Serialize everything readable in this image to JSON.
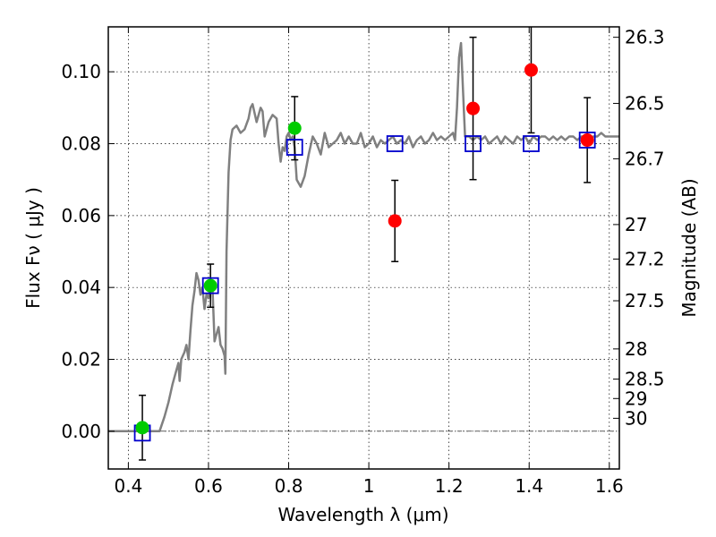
{
  "chart_data": {
    "type": "scatter",
    "xlabel": "Wavelength  λ (μm)",
    "ylabel": "Flux  Fν  ( μJy )",
    "y2label": "Magnitude (AB)",
    "xlim": [
      0.35,
      1.625
    ],
    "ylim": [
      -0.0105,
      0.1125
    ],
    "xticks": [
      0.4,
      0.6,
      0.8,
      1.0,
      1.2,
      1.4,
      1.6
    ],
    "xtick_labels": [
      "0.4",
      "0.6",
      "0.8",
      "1",
      "1.2",
      "1.4",
      "1.6"
    ],
    "yticks": [
      0.0,
      0.02,
      0.04,
      0.06,
      0.08,
      0.1
    ],
    "ytick_labels": [
      "0.00",
      "0.02",
      "0.04",
      "0.06",
      "0.08",
      "0.10"
    ],
    "mag_ticks": [
      {
        "label": "26.3",
        "flux": 0.1096
      },
      {
        "label": "26.5",
        "flux": 0.0912
      },
      {
        "label": "26.7",
        "flux": 0.0758
      },
      {
        "label": "27",
        "flux": 0.0575
      },
      {
        "label": "27.2",
        "flux": 0.0479
      },
      {
        "label": "27.5",
        "flux": 0.0363
      },
      {
        "label": "28",
        "flux": 0.0229
      },
      {
        "label": "28.5",
        "flux": 0.0145
      },
      {
        "label": "29",
        "flux": 0.0091
      },
      {
        "label": "30",
        "flux": 0.0036
      }
    ],
    "grid": true,
    "series": [
      {
        "type": "line",
        "color": "#808080",
        "points": [
          [
            0.35,
            0.0
          ],
          [
            0.478,
            0.0
          ],
          [
            0.49,
            0.004
          ],
          [
            0.5,
            0.008
          ],
          [
            0.51,
            0.013
          ],
          [
            0.52,
            0.017
          ],
          [
            0.525,
            0.019
          ],
          [
            0.528,
            0.014
          ],
          [
            0.532,
            0.02
          ],
          [
            0.54,
            0.022
          ],
          [
            0.545,
            0.024
          ],
          [
            0.55,
            0.02
          ],
          [
            0.555,
            0.028
          ],
          [
            0.56,
            0.035
          ],
          [
            0.565,
            0.039
          ],
          [
            0.57,
            0.044
          ],
          [
            0.575,
            0.042
          ],
          [
            0.58,
            0.038
          ],
          [
            0.585,
            0.04
          ],
          [
            0.59,
            0.034
          ],
          [
            0.595,
            0.038
          ],
          [
            0.6,
            0.037
          ],
          [
            0.605,
            0.041
          ],
          [
            0.61,
            0.04
          ],
          [
            0.615,
            0.025
          ],
          [
            0.62,
            0.027
          ],
          [
            0.625,
            0.029
          ],
          [
            0.63,
            0.024
          ],
          [
            0.635,
            0.023
          ],
          [
            0.64,
            0.021
          ],
          [
            0.642,
            0.016
          ],
          [
            0.645,
            0.05
          ],
          [
            0.65,
            0.072
          ],
          [
            0.655,
            0.081
          ],
          [
            0.66,
            0.084
          ],
          [
            0.67,
            0.085
          ],
          [
            0.68,
            0.083
          ],
          [
            0.69,
            0.084
          ],
          [
            0.7,
            0.087
          ],
          [
            0.705,
            0.09
          ],
          [
            0.71,
            0.091
          ],
          [
            0.72,
            0.086
          ],
          [
            0.73,
            0.09
          ],
          [
            0.735,
            0.089
          ],
          [
            0.74,
            0.082
          ],
          [
            0.75,
            0.086
          ],
          [
            0.76,
            0.088
          ],
          [
            0.77,
            0.087
          ],
          [
            0.775,
            0.08
          ],
          [
            0.78,
            0.075
          ],
          [
            0.785,
            0.079
          ],
          [
            0.79,
            0.078
          ],
          [
            0.795,
            0.082
          ],
          [
            0.8,
            0.083
          ],
          [
            0.805,
            0.081
          ],
          [
            0.81,
            0.082
          ],
          [
            0.815,
            0.079
          ],
          [
            0.82,
            0.07
          ],
          [
            0.83,
            0.068
          ],
          [
            0.84,
            0.071
          ],
          [
            0.85,
            0.077
          ],
          [
            0.86,
            0.082
          ],
          [
            0.87,
            0.08
          ],
          [
            0.88,
            0.077
          ],
          [
            0.89,
            0.083
          ],
          [
            0.9,
            0.079
          ],
          [
            0.91,
            0.08
          ],
          [
            0.92,
            0.081
          ],
          [
            0.93,
            0.083
          ],
          [
            0.94,
            0.08
          ],
          [
            0.95,
            0.082
          ],
          [
            0.96,
            0.08
          ],
          [
            0.97,
            0.08
          ],
          [
            0.98,
            0.083
          ],
          [
            0.99,
            0.079
          ],
          [
            1.0,
            0.08
          ],
          [
            1.01,
            0.082
          ],
          [
            1.02,
            0.079
          ],
          [
            1.03,
            0.081
          ],
          [
            1.04,
            0.08
          ],
          [
            1.05,
            0.081
          ],
          [
            1.06,
            0.082
          ],
          [
            1.07,
            0.08
          ],
          [
            1.08,
            0.081
          ],
          [
            1.09,
            0.08
          ],
          [
            1.1,
            0.082
          ],
          [
            1.11,
            0.079
          ],
          [
            1.12,
            0.081
          ],
          [
            1.13,
            0.082
          ],
          [
            1.14,
            0.08
          ],
          [
            1.15,
            0.081
          ],
          [
            1.16,
            0.083
          ],
          [
            1.17,
            0.081
          ],
          [
            1.18,
            0.082
          ],
          [
            1.19,
            0.081
          ],
          [
            1.2,
            0.082
          ],
          [
            1.21,
            0.083
          ],
          [
            1.215,
            0.081
          ],
          [
            1.22,
            0.09
          ],
          [
            1.225,
            0.104
          ],
          [
            1.23,
            0.108
          ],
          [
            1.235,
            0.095
          ],
          [
            1.24,
            0.082
          ],
          [
            1.25,
            0.082
          ],
          [
            1.26,
            0.081
          ],
          [
            1.27,
            0.082
          ],
          [
            1.28,
            0.081
          ],
          [
            1.29,
            0.082
          ],
          [
            1.3,
            0.08
          ],
          [
            1.31,
            0.081
          ],
          [
            1.32,
            0.082
          ],
          [
            1.33,
            0.08
          ],
          [
            1.34,
            0.082
          ],
          [
            1.35,
            0.081
          ],
          [
            1.36,
            0.08
          ],
          [
            1.37,
            0.082
          ],
          [
            1.38,
            0.081
          ],
          [
            1.39,
            0.082
          ],
          [
            1.4,
            0.08
          ],
          [
            1.41,
            0.082
          ],
          [
            1.42,
            0.081
          ],
          [
            1.43,
            0.082
          ],
          [
            1.44,
            0.082
          ],
          [
            1.45,
            0.081
          ],
          [
            1.46,
            0.082
          ],
          [
            1.47,
            0.081
          ],
          [
            1.48,
            0.082
          ],
          [
            1.49,
            0.081
          ],
          [
            1.5,
            0.082
          ],
          [
            1.51,
            0.082
          ],
          [
            1.52,
            0.081
          ],
          [
            1.53,
            0.082
          ],
          [
            1.54,
            0.082
          ],
          [
            1.55,
            0.081
          ],
          [
            1.56,
            0.082
          ],
          [
            1.57,
            0.082
          ],
          [
            1.58,
            0.083
          ],
          [
            1.59,
            0.082
          ],
          [
            1.6,
            0.082
          ],
          [
            1.625,
            0.082
          ]
        ]
      },
      {
        "type": "model_points",
        "marker": "open-square",
        "color": "#0000cc",
        "x": [
          0.435,
          0.605,
          0.815,
          1.065,
          1.26,
          1.405,
          1.545
        ],
        "y": [
          -0.0005,
          0.0405,
          0.079,
          0.08,
          0.08,
          0.08,
          0.081
        ]
      },
      {
        "type": "observed",
        "marker": "filled-circle",
        "color": "#00cc00",
        "x": [
          0.435,
          0.605,
          0.815
        ],
        "y": [
          0.001,
          0.0405,
          0.0843
        ],
        "err": [
          0.009,
          0.006,
          0.0088
        ]
      },
      {
        "type": "observed",
        "marker": "filled-circle",
        "color": "#ff0000",
        "x": [
          1.065,
          1.26,
          1.405,
          1.545
        ],
        "y": [
          0.0585,
          0.0898,
          0.1005,
          0.081
        ],
        "err": [
          0.0113,
          0.0198,
          0.0175,
          0.0118
        ]
      }
    ]
  }
}
